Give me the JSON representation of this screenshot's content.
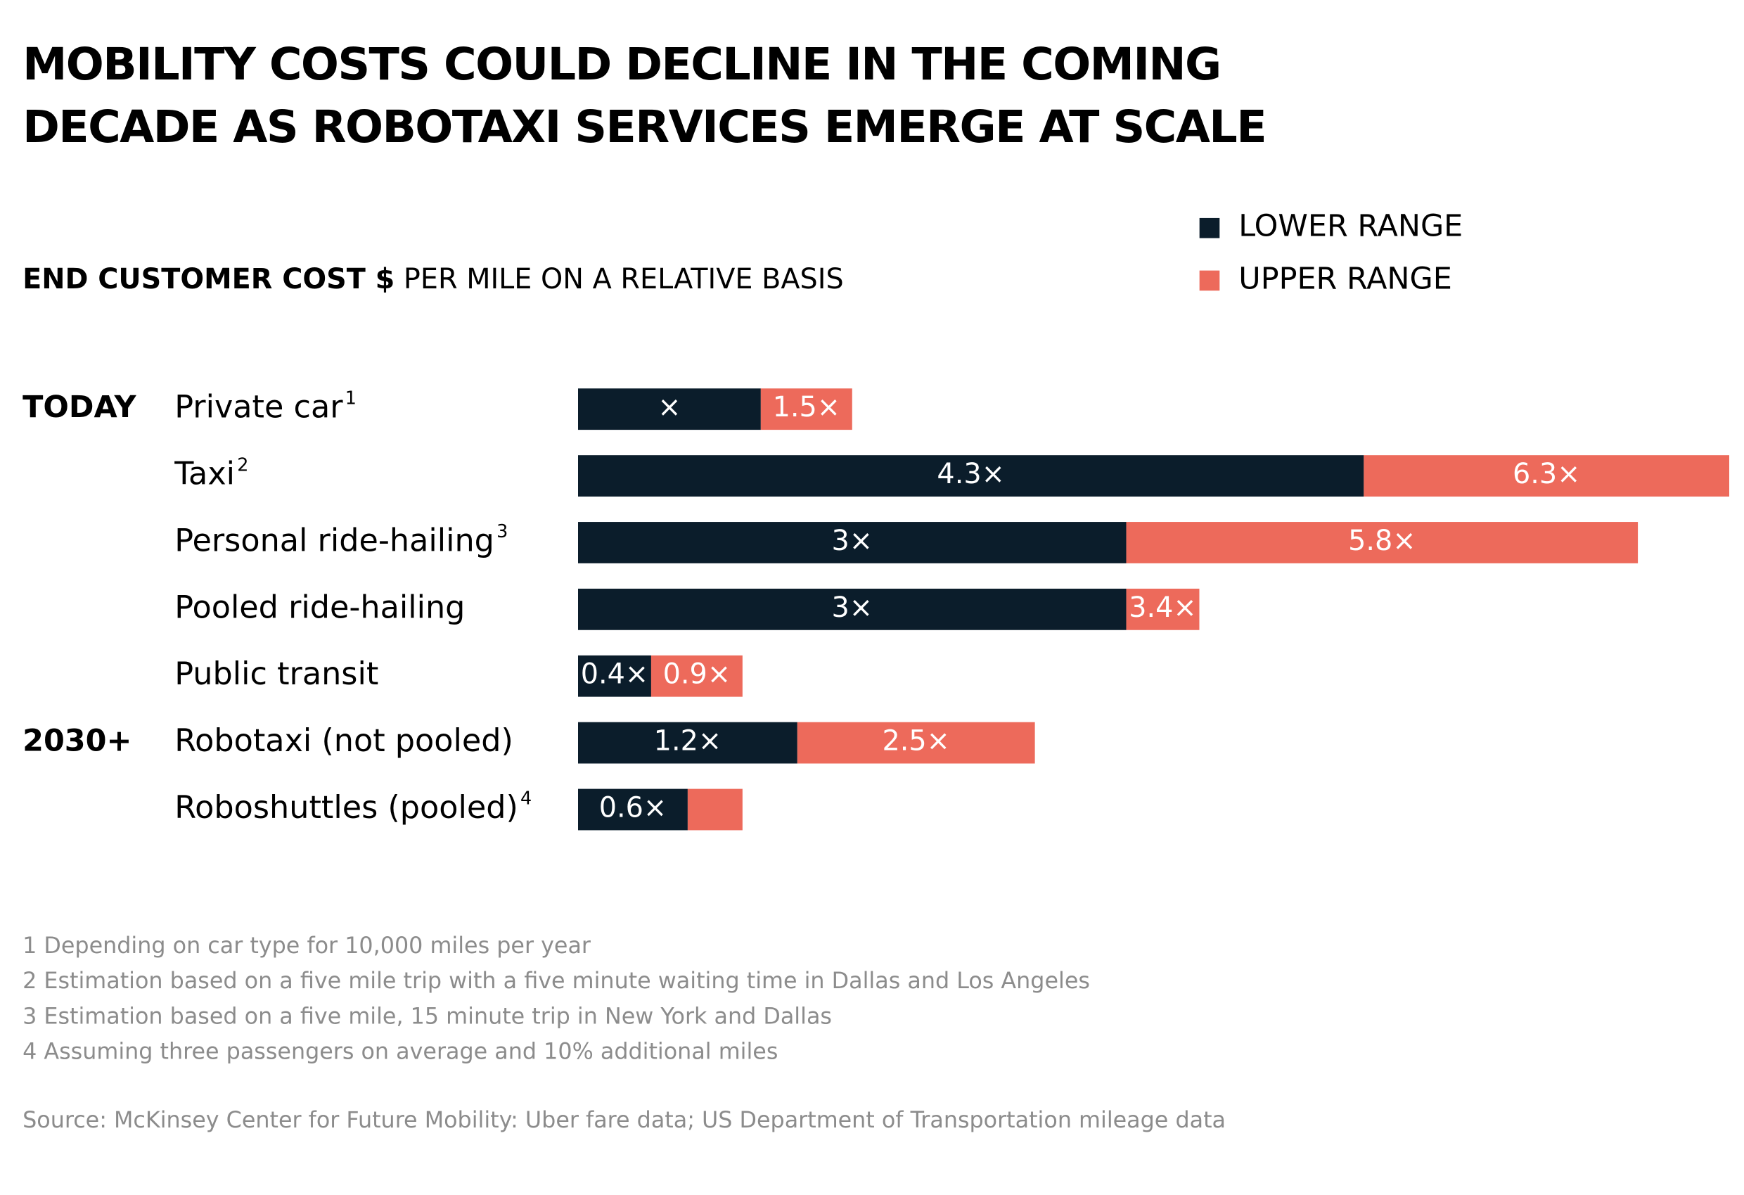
{
  "chart_data": {
    "type": "range_bar",
    "title_lines": [
      "MOBILITY COSTS COULD DECLINE IN THE COMING",
      "DECADE AS ROBOTAXI SERVICES EMERGE AT SCALE"
    ],
    "subtitle_bold": "END CUSTOMER COST $",
    "subtitle": "PER MILE ON A RELATIVE BASIS",
    "groups": [
      "TODAY",
      null,
      null,
      null,
      null,
      "2030+",
      null
    ],
    "categories": [
      "Private car",
      "Taxi",
      "Personal ride-hailing",
      "Pooled ride-hailing",
      "Public transit",
      "Robotaxi (not pooled)",
      "Roboshuttles (pooled)"
    ],
    "footnote_refs": [
      "1",
      "2",
      "3",
      null,
      null,
      null,
      "4"
    ],
    "series": [
      {
        "name": "LOWER RANGE",
        "color": "#0b1d2b",
        "values": [
          1,
          4.3,
          3,
          3,
          0.4,
          1.2,
          0.6
        ],
        "value_labels": [
          "×",
          "4.3×",
          "3×",
          "3×",
          "0.4×",
          "1.2×",
          "0.6×"
        ]
      },
      {
        "name": "UPPER RANGE",
        "color": "#ed6a5b",
        "values": [
          1.5,
          6.3,
          5.8,
          3.4,
          0.9,
          2.5,
          0.9
        ],
        "value_labels": [
          "1.5×",
          "6.3×",
          "5.8×",
          "3.4×",
          "0.9×",
          "2.5×",
          null
        ]
      }
    ],
    "xlim": [
      0,
      6.3
    ],
    "footnotes": [
      "1 Depending on car type for 10,000 miles per year",
      "2 Estimation based on a five mile trip with a five minute waiting time in Dallas and Los Angeles",
      "3 Estimation based on a five mile, 15 minute trip in New York and Dallas",
      "4 Assuming three passengers on average and 10% additional miles"
    ],
    "source": "Source: McKinsey Center for Future Mobility: Uber fare data; US Department of Transportation mileage data"
  }
}
